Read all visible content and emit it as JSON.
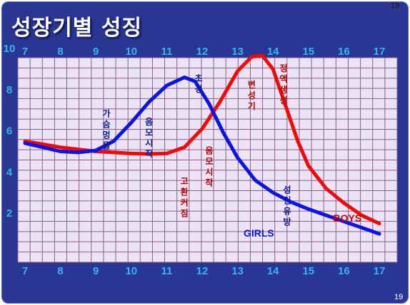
{
  "slide": {
    "title": "성장기별 성징",
    "page_number_top": "19",
    "page_number_bottom": "19"
  },
  "colors": {
    "background": "#2a3694",
    "plot_background": "#ece4f4",
    "grid": "#8a5f8c",
    "tick_label": "#31b7ee",
    "girls": "#0a14e6",
    "boys": "#f20606",
    "girls_annotation": "#0b1a8f",
    "boys_annotation": "#b80000"
  },
  "chart_data": {
    "type": "line",
    "title": "",
    "xlabel": "",
    "ylabel": "",
    "x_ticks": [
      "7",
      "8",
      "9",
      "10",
      "11",
      "12",
      "13",
      "14",
      "15",
      "16",
      "17"
    ],
    "y_ticks": [
      "10",
      "8",
      "6",
      "4",
      "2"
    ],
    "xlim": [
      7,
      17
    ],
    "ylim": [
      0,
      10
    ],
    "grid": true,
    "series": [
      {
        "name": "GIRLS",
        "color": "#0a14e6",
        "points": [
          [
            7.0,
            5.4
          ],
          [
            7.5,
            5.2
          ],
          [
            8.0,
            5.0
          ],
          [
            8.5,
            4.95
          ],
          [
            9.0,
            5.05
          ],
          [
            9.5,
            5.5
          ],
          [
            10.0,
            6.4
          ],
          [
            10.5,
            7.4
          ],
          [
            11.0,
            8.2
          ],
          [
            11.5,
            8.6
          ],
          [
            11.8,
            8.4
          ],
          [
            12.2,
            7.3
          ],
          [
            12.6,
            5.9
          ],
          [
            13.0,
            4.7
          ],
          [
            13.5,
            3.6
          ],
          [
            14.0,
            3.0
          ],
          [
            14.5,
            2.55
          ],
          [
            15.0,
            2.2
          ],
          [
            15.5,
            1.9
          ],
          [
            16.0,
            1.6
          ],
          [
            16.5,
            1.3
          ],
          [
            17.0,
            1.0
          ]
        ]
      },
      {
        "name": "BOYS",
        "color": "#f20606",
        "points": [
          [
            7.0,
            5.5
          ],
          [
            7.5,
            5.35
          ],
          [
            8.0,
            5.2
          ],
          [
            8.5,
            5.1
          ],
          [
            9.0,
            5.0
          ],
          [
            9.5,
            4.95
          ],
          [
            10.0,
            4.9
          ],
          [
            10.5,
            4.88
          ],
          [
            11.0,
            4.9
          ],
          [
            11.5,
            5.2
          ],
          [
            12.0,
            6.1
          ],
          [
            12.5,
            7.4
          ],
          [
            13.0,
            8.9
          ],
          [
            13.4,
            9.6
          ],
          [
            13.7,
            9.65
          ],
          [
            14.0,
            9.0
          ],
          [
            14.3,
            7.5
          ],
          [
            14.7,
            5.5
          ],
          [
            15.0,
            4.3
          ],
          [
            15.5,
            3.2
          ],
          [
            16.0,
            2.5
          ],
          [
            16.5,
            1.9
          ],
          [
            17.0,
            1.5
          ]
        ]
      }
    ],
    "series_labels": [
      "GIRLS",
      "BOYS"
    ],
    "annotations": [
      {
        "text": "가슴멍울",
        "series": "GIRLS",
        "x": 9.3,
        "y": 6.7
      },
      {
        "text": "음모시작",
        "series": "GIRLS",
        "x": 10.5,
        "y": 6.3
      },
      {
        "text": "초경",
        "series": "GIRLS",
        "x": 11.9,
        "y": 8.4
      },
      {
        "text": "성인유방",
        "series": "GIRLS",
        "x": 14.4,
        "y": 3.0
      },
      {
        "text": "고환커짐",
        "series": "BOYS",
        "x": 11.5,
        "y": 3.4
      },
      {
        "text": "음모시작",
        "series": "BOYS",
        "x": 12.2,
        "y": 4.9
      },
      {
        "text": "변성기",
        "series": "BOYS",
        "x": 13.4,
        "y": 8.1
      },
      {
        "text": "정액생성",
        "series": "BOYS",
        "x": 14.3,
        "y": 8.9
      }
    ]
  }
}
